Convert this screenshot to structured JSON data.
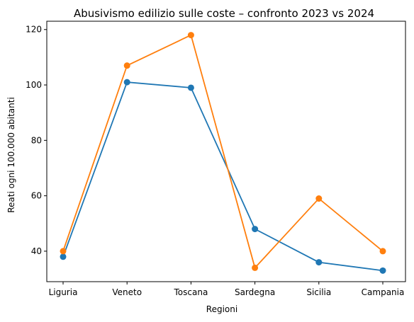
{
  "chart_data": {
    "type": "line",
    "title": "Abusivismo edilizio sulle coste – confronto 2023 vs 2024",
    "xlabel": "Regioni",
    "ylabel": "Reati ogni 100.000 abitanti",
    "categories": [
      "Liguria",
      "Veneto",
      "Toscana",
      "Sardegna",
      "Sicilia",
      "Campania"
    ],
    "ylim": [
      29,
      123
    ],
    "yticks": [
      40,
      60,
      80,
      100,
      120
    ],
    "grid": false,
    "legend": "none",
    "series": [
      {
        "values": [
          38,
          101,
          99,
          48,
          36,
          33
        ],
        "color": "#1f77b4"
      },
      {
        "values": [
          40,
          107,
          118,
          34,
          59,
          40
        ],
        "color": "#ff7f0e"
      }
    ]
  }
}
